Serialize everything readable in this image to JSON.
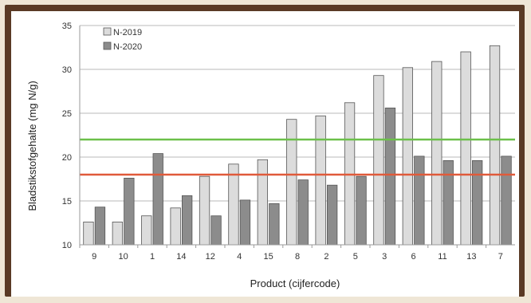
{
  "chart_data": {
    "type": "bar",
    "title": "",
    "xlabel": "Product (cijfercode)",
    "ylabel": "Bladstikstofgehalte (mg N/g)",
    "ylim": [
      10,
      35
    ],
    "yticks": [
      "10",
      "15",
      "20",
      "25",
      "30",
      "35"
    ],
    "grid": "horizontal",
    "legend_position": "top-left",
    "categories": [
      "9",
      "10",
      "1",
      "14",
      "12",
      "4",
      "15",
      "8",
      "2",
      "5",
      "3",
      "6",
      "11",
      "13",
      "7"
    ],
    "series": [
      {
        "name": "N-2019",
        "color": "#dcdcdc",
        "values": [
          12.6,
          12.6,
          13.3,
          14.2,
          17.8,
          19.2,
          19.7,
          24.3,
          24.7,
          26.2,
          29.3,
          30.2,
          30.9,
          32.0,
          32.7
        ]
      },
      {
        "name": "N-2020",
        "color": "#8c8c8c",
        "values": [
          14.3,
          17.6,
          20.4,
          15.6,
          13.3,
          15.1,
          14.7,
          17.4,
          16.8,
          17.8,
          25.6,
          20.1,
          19.6,
          19.6,
          20.1
        ]
      }
    ],
    "reference_lines": [
      {
        "value": 22.0,
        "color": "#6cc04a"
      },
      {
        "value": 18.0,
        "color": "#e05a3a"
      }
    ]
  }
}
